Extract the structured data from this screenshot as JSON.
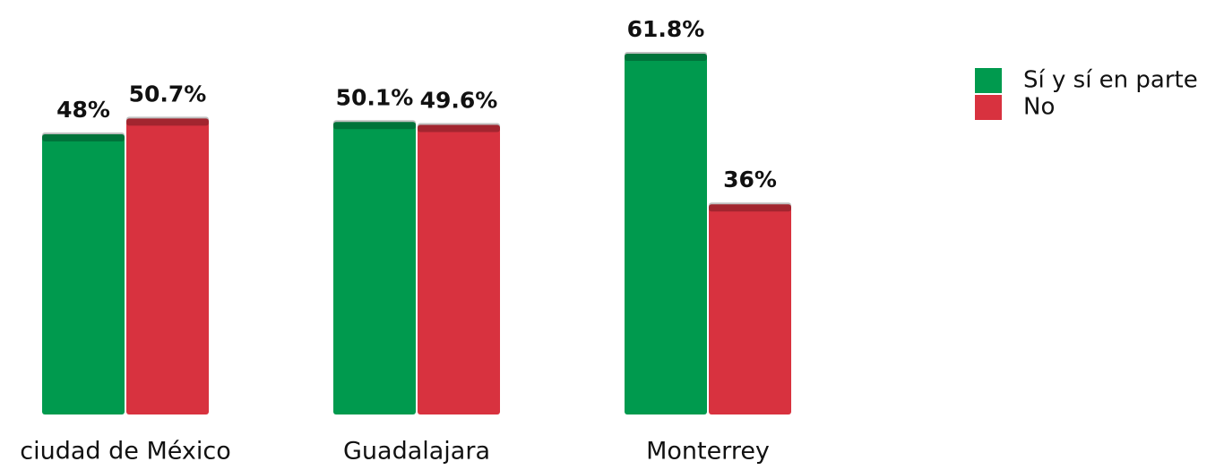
{
  "chart_data": {
    "type": "bar",
    "categories": [
      "ciudad de México",
      "Guadalajara",
      "Monterrey"
    ],
    "series": [
      {
        "name": "Sí y sí en parte",
        "color": "#009a4e",
        "values": [
          48,
          50.1,
          61.8
        ],
        "value_labels": [
          "48%",
          "50.1%",
          "61.8%"
        ]
      },
      {
        "name": "No",
        "color": "#d8323f",
        "values": [
          50.7,
          49.6,
          36
        ],
        "value_labels": [
          "50.7%",
          "49.6%",
          "36%"
        ]
      }
    ],
    "legend": "top-right"
  }
}
